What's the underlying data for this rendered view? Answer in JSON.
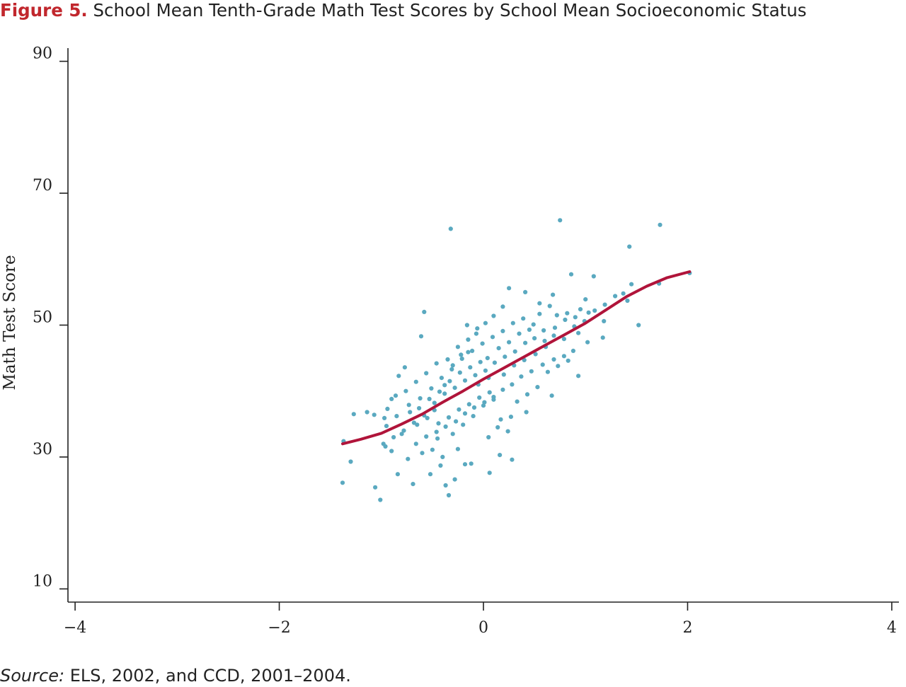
{
  "figure": {
    "label": "Figure 5.",
    "title": "School Mean Tenth-Grade Math Test Scores by School Mean Socioeconomic Status",
    "source_label": "Source:",
    "source_text": "ELS, 2002, and CCD, 2001–2004."
  },
  "colors": {
    "label": "#c1272d",
    "points": "#5aa9c0",
    "fit_line": "#b0143a",
    "axis": "#222222"
  },
  "chart_data": {
    "type": "scatter",
    "title": "School Mean Tenth-Grade Math Test Scores by School Mean Socioeconomic Status",
    "xlabel": "",
    "ylabel": "Math Test Score",
    "xlim": [
      -4.07,
      4.07
    ],
    "ylim": [
      8,
      92
    ],
    "xticks": [
      -4,
      -2,
      0,
      2,
      4
    ],
    "xtick_labels": [
      "−4",
      "−2",
      "0",
      "2",
      "4"
    ],
    "yticks": [
      10,
      30,
      50,
      70,
      90
    ],
    "ytick_labels": [
      "10",
      "30",
      "50",
      "70",
      "90"
    ],
    "grid": false,
    "series": [
      {
        "type": "scatter",
        "points": [
          [
            -0.32,
            64.6
          ],
          [
            0.75,
            65.9
          ],
          [
            1.73,
            65.2
          ],
          [
            1.43,
            61.9
          ],
          [
            1.72,
            56.3
          ],
          [
            2.02,
            57.9
          ],
          [
            1.52,
            50.0
          ],
          [
            1.45,
            56.2
          ],
          [
            1.37,
            54.8
          ],
          [
            1.41,
            53.7
          ],
          [
            -1.38,
            26.1
          ],
          [
            -1.01,
            23.5
          ],
          [
            -1.06,
            25.4
          ],
          [
            -1.3,
            29.3
          ],
          [
            -0.34,
            24.2
          ],
          [
            -0.96,
            31.6
          ],
          [
            -1.27,
            36.5
          ],
          [
            -1.14,
            36.8
          ],
          [
            -1.07,
            36.4
          ],
          [
            -0.97,
            35.9
          ],
          [
            -1.37,
            32.4
          ],
          [
            -0.58,
            52.0
          ],
          [
            -0.61,
            48.3
          ],
          [
            -0.18,
            28.9
          ],
          [
            0.06,
            27.6
          ],
          [
            0.16,
            30.3
          ],
          [
            0.28,
            29.6
          ],
          [
            -0.28,
            26.6
          ],
          [
            -0.37,
            25.7
          ],
          [
            -0.52,
            27.4
          ],
          [
            -0.69,
            25.9
          ],
          [
            -0.84,
            27.4
          ],
          [
            -0.9,
            30.9
          ],
          [
            0.86,
            57.7
          ],
          [
            1.08,
            57.4
          ],
          [
            0.93,
            42.3
          ],
          [
            0.67,
            39.3
          ],
          [
            0.42,
            36.8
          ],
          [
            0.27,
            36.1
          ],
          [
            -0.77,
            43.6
          ],
          [
            -0.83,
            42.3
          ],
          [
            -0.9,
            38.8
          ],
          [
            -0.95,
            34.7
          ],
          [
            -0.8,
            33.5
          ],
          [
            -0.66,
            32.0
          ],
          [
            -0.45,
            32.8
          ],
          [
            -0.42,
            28.7
          ],
          [
            -0.25,
            31.2
          ],
          [
            -0.12,
            29.0
          ],
          [
            0.05,
            33.0
          ],
          [
            0.17,
            35.7
          ],
          [
            -0.55,
            35.9
          ],
          [
            -0.48,
            38.2
          ],
          [
            -0.38,
            40.9
          ],
          [
            -0.3,
            43.9
          ],
          [
            -0.22,
            45.5
          ],
          [
            -0.15,
            47.8
          ],
          [
            -0.07,
            48.7
          ],
          [
            0.02,
            50.3
          ],
          [
            0.1,
            51.4
          ],
          [
            0.19,
            52.8
          ],
          [
            0.25,
            55.6
          ],
          [
            0.41,
            55.0
          ],
          [
            0.55,
            53.3
          ],
          [
            0.68,
            54.6
          ],
          [
            0.82,
            51.8
          ],
          [
            0.95,
            52.4
          ],
          [
            1.03,
            51.9
          ],
          [
            1.18,
            50.6
          ],
          [
            1.17,
            48.1
          ],
          [
            1.02,
            47.4
          ],
          [
            0.88,
            46.1
          ],
          [
            0.79,
            45.3
          ],
          [
            0.69,
            44.8
          ],
          [
            0.58,
            44.0
          ],
          [
            0.47,
            43.0
          ],
          [
            0.37,
            42.2
          ],
          [
            0.28,
            41.0
          ],
          [
            0.19,
            40.2
          ],
          [
            0.1,
            39.1
          ],
          [
            0.01,
            38.3
          ],
          [
            -0.09,
            37.5
          ],
          [
            -0.18,
            36.6
          ],
          [
            -0.27,
            35.4
          ],
          [
            -0.37,
            34.6
          ],
          [
            -0.46,
            33.8
          ],
          [
            -0.56,
            33.1
          ],
          [
            -0.65,
            34.9
          ],
          [
            -0.72,
            36.8
          ],
          [
            -0.62,
            38.9
          ],
          [
            -0.51,
            40.4
          ],
          [
            -0.41,
            42.0
          ],
          [
            -0.31,
            43.3
          ],
          [
            -0.21,
            44.9
          ],
          [
            -0.11,
            46.1
          ],
          [
            -0.01,
            47.2
          ],
          [
            0.09,
            48.2
          ],
          [
            0.19,
            49.1
          ],
          [
            0.29,
            50.3
          ],
          [
            0.39,
            51.0
          ],
          [
            0.49,
            50.1
          ],
          [
            0.59,
            49.2
          ],
          [
            0.69,
            48.4
          ],
          [
            0.79,
            47.9
          ],
          [
            0.89,
            49.8
          ],
          [
            0.99,
            50.6
          ],
          [
            1.09,
            52.2
          ],
          [
            1.19,
            53.1
          ],
          [
            1.29,
            54.4
          ],
          [
            0.72,
            51.5
          ],
          [
            0.61,
            46.7
          ],
          [
            0.51,
            45.6
          ],
          [
            0.41,
            47.3
          ],
          [
            0.31,
            46.0
          ],
          [
            0.21,
            45.2
          ],
          [
            0.11,
            44.3
          ],
          [
            0.02,
            43.1
          ],
          [
            -0.08,
            42.4
          ],
          [
            -0.18,
            41.6
          ],
          [
            -0.28,
            40.5
          ],
          [
            -0.38,
            39.6
          ],
          [
            -0.48,
            37.1
          ],
          [
            -0.58,
            36.3
          ],
          [
            -0.68,
            35.2
          ],
          [
            -0.78,
            34.0
          ],
          [
            -0.88,
            33.0
          ],
          [
            -0.98,
            32.0
          ],
          [
            -0.74,
            29.7
          ],
          [
            -0.6,
            30.6
          ],
          [
            -0.5,
            31.1
          ],
          [
            -0.4,
            30.0
          ],
          [
            -0.3,
            33.5
          ],
          [
            -0.2,
            34.9
          ],
          [
            -0.1,
            36.2
          ],
          [
            0.0,
            37.8
          ],
          [
            0.1,
            38.7
          ],
          [
            0.2,
            42.5
          ],
          [
            0.3,
            43.9
          ],
          [
            0.4,
            44.7
          ],
          [
            0.5,
            48.0
          ],
          [
            0.6,
            47.6
          ],
          [
            0.7,
            49.6
          ],
          [
            0.8,
            50.8
          ],
          [
            0.9,
            51.2
          ],
          [
            1.0,
            53.9
          ],
          [
            -0.03,
            44.4
          ],
          [
            -0.13,
            43.6
          ],
          [
            -0.23,
            42.8
          ],
          [
            -0.33,
            41.5
          ],
          [
            -0.43,
            39.9
          ],
          [
            -0.53,
            38.8
          ],
          [
            -0.63,
            37.4
          ],
          [
            -0.73,
            37.9
          ],
          [
            -0.85,
            36.2
          ],
          [
            -0.35,
            44.8
          ],
          [
            -0.25,
            46.7
          ],
          [
            -0.15,
            45.9
          ],
          [
            -0.05,
            41.0
          ],
          [
            0.05,
            42.0
          ],
          [
            0.15,
            46.5
          ],
          [
            0.25,
            47.4
          ],
          [
            0.35,
            48.7
          ],
          [
            0.45,
            49.3
          ],
          [
            0.55,
            51.7
          ],
          [
            0.65,
            52.9
          ],
          [
            0.06,
            39.8
          ],
          [
            -0.04,
            39.0
          ],
          [
            -0.14,
            38.0
          ],
          [
            -0.24,
            37.2
          ],
          [
            -0.34,
            36.0
          ],
          [
            -0.44,
            35.1
          ],
          [
            0.14,
            34.5
          ],
          [
            0.24,
            33.9
          ],
          [
            0.33,
            38.4
          ],
          [
            0.43,
            39.5
          ],
          [
            0.53,
            40.6
          ],
          [
            0.63,
            42.9
          ],
          [
            0.73,
            43.8
          ],
          [
            0.83,
            44.6
          ],
          [
            0.93,
            48.8
          ],
          [
            -0.16,
            50.0
          ],
          [
            -0.06,
            49.5
          ],
          [
            0.04,
            45.0
          ],
          [
            -0.46,
            44.2
          ],
          [
            -0.56,
            42.7
          ],
          [
            -0.66,
            41.4
          ],
          [
            -0.76,
            40.0
          ],
          [
            -0.86,
            39.3
          ],
          [
            -0.94,
            37.3
          ]
        ]
      },
      {
        "type": "line",
        "name": "",
        "points": [
          [
            -1.38,
            32.0
          ],
          [
            -1.2,
            32.7
          ],
          [
            -1.0,
            33.6
          ],
          [
            -0.8,
            35.0
          ],
          [
            -0.6,
            36.5
          ],
          [
            -0.4,
            38.3
          ],
          [
            -0.2,
            40.0
          ],
          [
            0.0,
            41.8
          ],
          [
            0.2,
            43.5
          ],
          [
            0.4,
            45.2
          ],
          [
            0.6,
            46.9
          ],
          [
            0.8,
            48.6
          ],
          [
            1.0,
            50.3
          ],
          [
            1.2,
            52.3
          ],
          [
            1.4,
            54.3
          ],
          [
            1.6,
            55.9
          ],
          [
            1.8,
            57.2
          ],
          [
            2.02,
            58.1
          ]
        ]
      }
    ]
  }
}
